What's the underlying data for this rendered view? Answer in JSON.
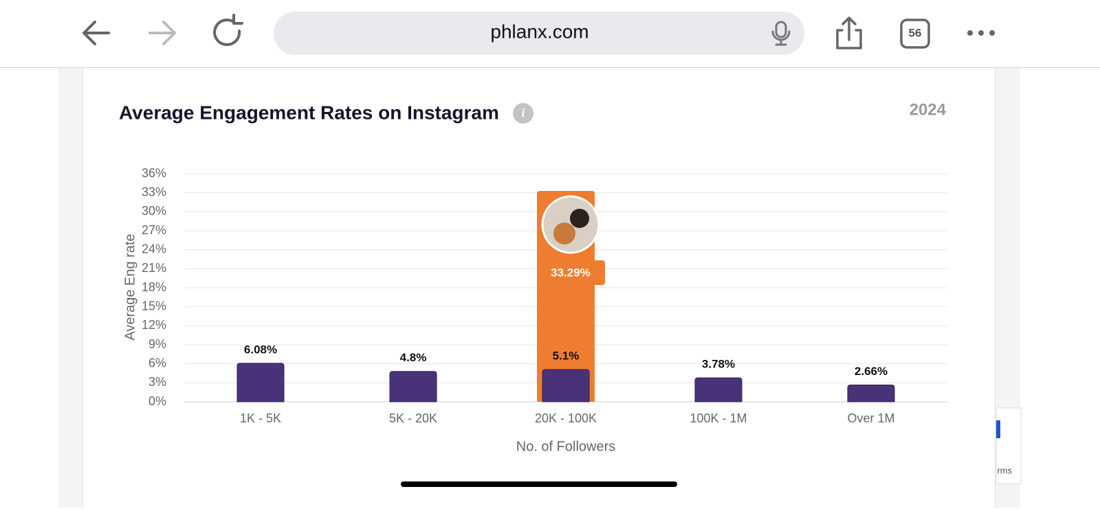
{
  "browser": {
    "url": "phlanx.com",
    "tab_count": "56"
  },
  "recaptcha_fragment": "rms",
  "chart_data": {
    "type": "bar",
    "title": "Average Engagement Rates on Instagram",
    "year_label": "2024",
    "xlabel": "No. of Followers",
    "ylabel": "Average Eng rate",
    "categories": [
      "1K - 5K",
      "5K - 20K",
      "20K - 100K",
      "100K - 1M",
      "Over 1M"
    ],
    "series": [
      {
        "color": "#ef7d2f",
        "values": [
          null,
          null,
          33.29,
          null,
          null
        ],
        "value_labels": [
          null,
          null,
          "33.29%",
          null,
          null
        ]
      },
      {
        "color": "#4a3279",
        "values": [
          6.08,
          4.8,
          5.1,
          3.78,
          2.66
        ],
        "value_labels": [
          "6.08%",
          "4.8%",
          "5.1%",
          "3.78%",
          "2.66%"
        ]
      }
    ],
    "ylim": [
      0,
      36
    ],
    "yticks": [
      {
        "value": 0,
        "label": "0%"
      },
      {
        "value": 3,
        "label": "3%"
      },
      {
        "value": 6,
        "label": "6%"
      },
      {
        "value": 9,
        "label": "9%"
      },
      {
        "value": 12,
        "label": "12%"
      },
      {
        "value": 15,
        "label": "15%"
      },
      {
        "value": 18,
        "label": "18%"
      },
      {
        "value": 21,
        "label": "21%"
      },
      {
        "value": 24,
        "label": "24%"
      },
      {
        "value": 27,
        "label": "27%"
      },
      {
        "value": 30,
        "label": "30%"
      },
      {
        "value": 33,
        "label": "33%"
      },
      {
        "value": 36,
        "label": "36%"
      }
    ],
    "grid": true
  }
}
